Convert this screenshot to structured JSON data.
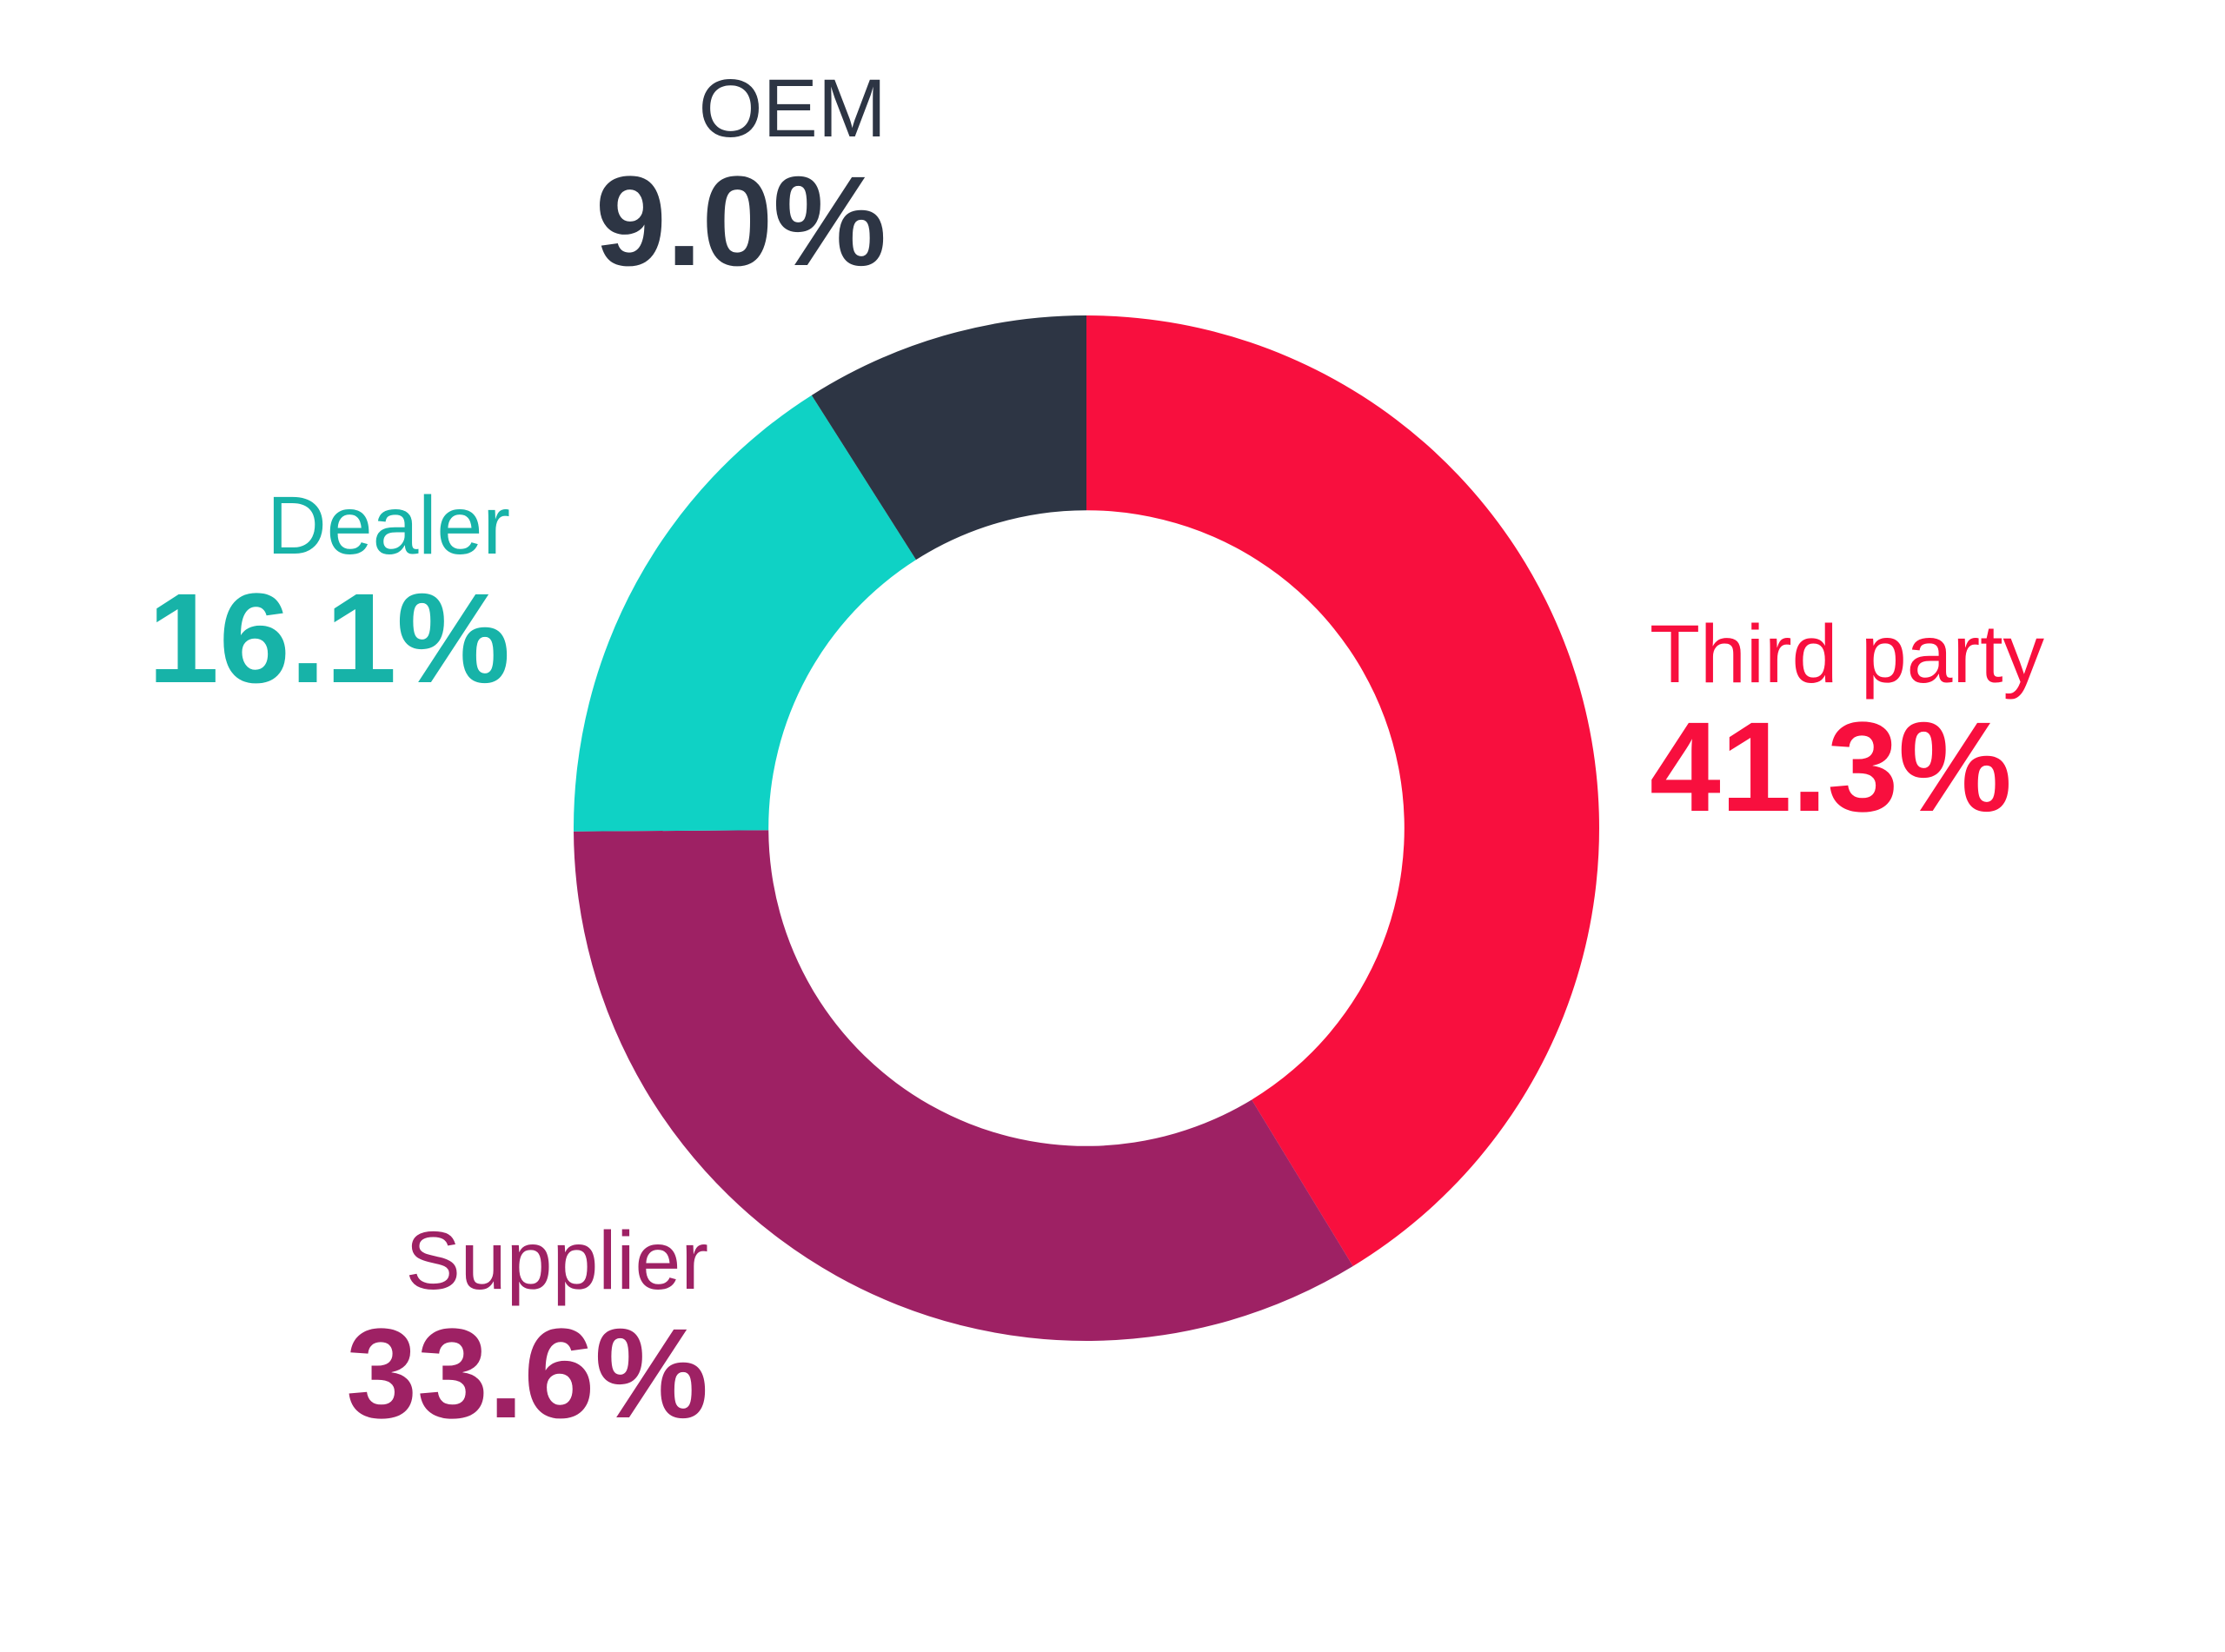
{
  "chart_data": {
    "type": "pie",
    "subtype": "donut",
    "title": "",
    "background": "#FFFFFF",
    "start_angle_deg": 0,
    "direction": "clockwise",
    "inner_radius_ratio": 0.62,
    "legend": "none",
    "data_labels": "outside, color-matched, two lines (name + percent)",
    "categories": [
      "Third party",
      "Supplier",
      "Dealer",
      "OEM"
    ],
    "values": [
      41.3,
      33.6,
      16.1,
      9.0
    ],
    "segments": [
      {
        "label": "Third party",
        "value": 41.3,
        "display": "41.3%",
        "color": "#F80F3E",
        "label_color": "#F80F3E"
      },
      {
        "label": "Supplier",
        "value": 33.6,
        "display": "33.6%",
        "color": "#9E2164",
        "label_color": "#9E2164"
      },
      {
        "label": "Dealer",
        "value": 16.1,
        "display": "16.1%",
        "color": "#0FD2C5",
        "label_color": "#17B3A8"
      },
      {
        "label": "OEM",
        "value": 9.0,
        "display": "9.0%",
        "color": "#2D3544",
        "label_color": "#2D3544"
      }
    ]
  }
}
